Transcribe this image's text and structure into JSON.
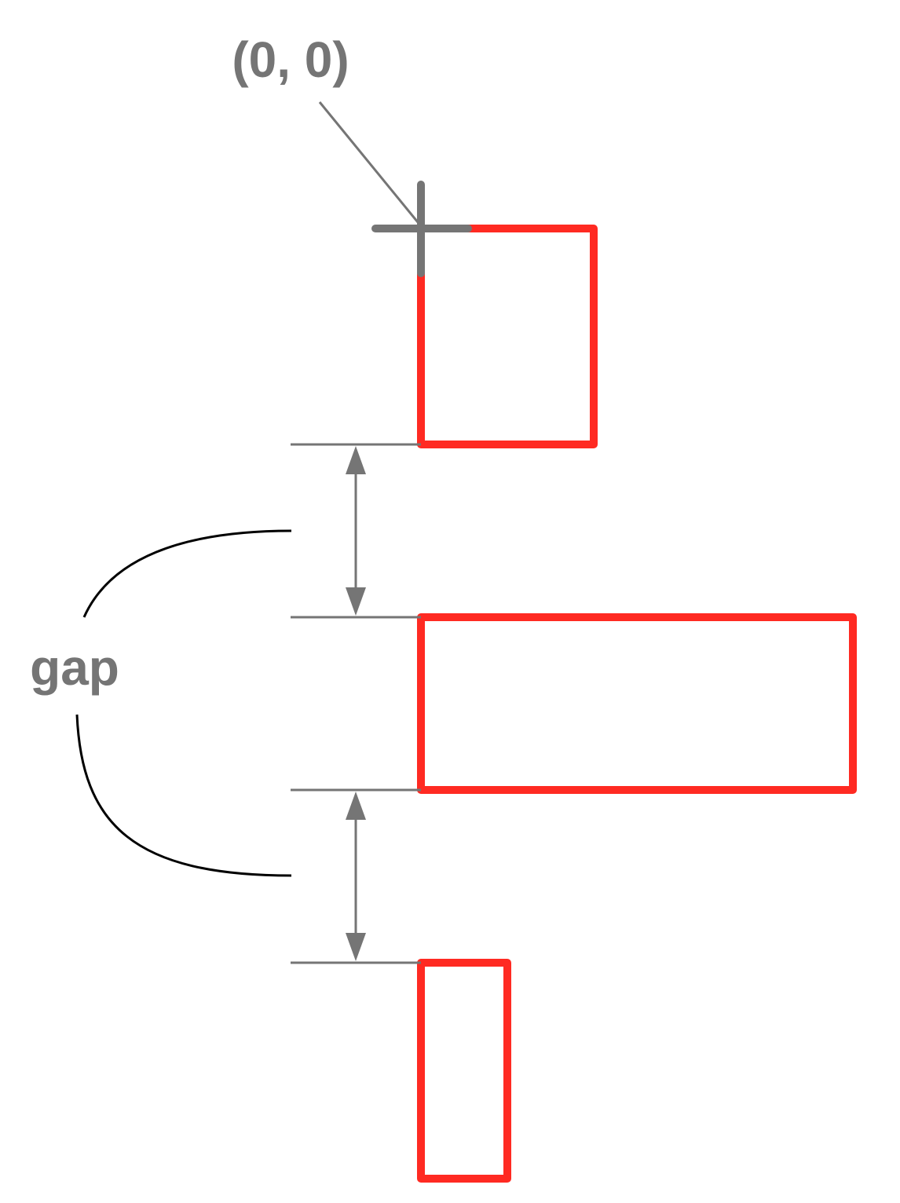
{
  "origin_label": "(0, 0)",
  "gap_label": "gap",
  "colors": {
    "box_stroke": "#ff2a22",
    "annotation_gray": "#757575",
    "bracket_black": "#000000",
    "background": "#ffffff"
  }
}
